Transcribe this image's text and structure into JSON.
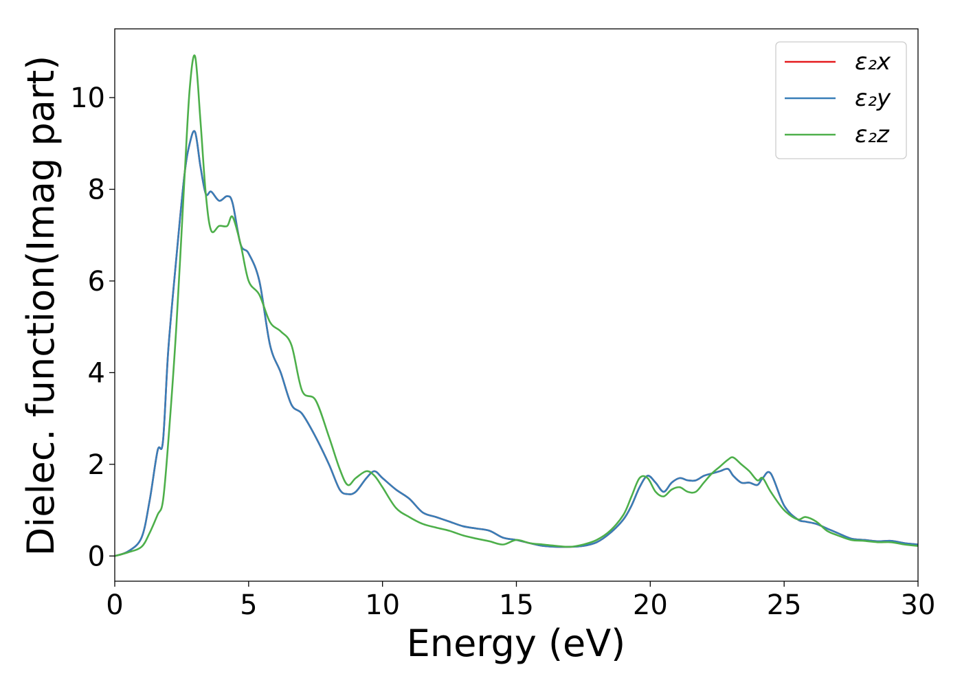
{
  "chart_data": {
    "type": "line",
    "title": "",
    "xlabel": "Energy (eV)",
    "ylabel": "Dielec. function(Imag part)",
    "xlim": [
      0,
      30
    ],
    "ylim": [
      -0.55,
      11.5
    ],
    "xticks": [
      0,
      5,
      10,
      15,
      20,
      25,
      30
    ],
    "yticks": [
      0,
      2,
      4,
      6,
      8,
      10
    ],
    "grid": false,
    "legend_position": "top-right",
    "x": [
      0,
      0.5,
      1.0,
      1.3,
      1.6,
      1.8,
      2.0,
      2.3,
      2.6,
      2.8,
      3.0,
      3.2,
      3.4,
      3.6,
      3.9,
      4.2,
      4.4,
      4.7,
      5.0,
      5.4,
      5.8,
      6.2,
      6.6,
      7.0,
      7.5,
      8.0,
      8.4,
      8.7,
      9.0,
      9.4,
      9.7,
      10.0,
      10.5,
      11.0,
      11.5,
      12.0,
      12.5,
      13.0,
      13.5,
      14.0,
      14.5,
      15.0,
      15.5,
      16.0,
      16.5,
      17.0,
      17.5,
      18.0,
      18.5,
      19.0,
      19.3,
      19.6,
      19.9,
      20.2,
      20.5,
      20.8,
      21.1,
      21.4,
      21.7,
      22.0,
      22.3,
      22.6,
      22.9,
      23.1,
      23.4,
      23.7,
      24.0,
      24.2,
      24.5,
      25.0,
      25.5,
      25.8,
      26.2,
      26.6,
      27.0,
      27.5,
      28.0,
      28.5,
      29.0,
      29.5,
      30.0
    ],
    "series": [
      {
        "name": "ε₂x",
        "color": "#e41a1c",
        "values": [
          0.0,
          0.1,
          0.4,
          1.2,
          2.3,
          2.5,
          4.5,
          6.5,
          8.3,
          9.0,
          9.25,
          8.5,
          7.9,
          7.95,
          7.75,
          7.85,
          7.7,
          6.8,
          6.6,
          6.0,
          4.6,
          4.0,
          3.3,
          3.1,
          2.6,
          2.0,
          1.45,
          1.35,
          1.4,
          1.7,
          1.85,
          1.7,
          1.45,
          1.25,
          0.95,
          0.85,
          0.75,
          0.65,
          0.6,
          0.55,
          0.4,
          0.35,
          0.28,
          0.22,
          0.2,
          0.2,
          0.22,
          0.3,
          0.5,
          0.8,
          1.1,
          1.5,
          1.75,
          1.6,
          1.4,
          1.6,
          1.7,
          1.65,
          1.65,
          1.75,
          1.8,
          1.85,
          1.9,
          1.75,
          1.6,
          1.6,
          1.55,
          1.7,
          1.8,
          1.1,
          0.8,
          0.75,
          0.7,
          0.6,
          0.5,
          0.38,
          0.35,
          0.32,
          0.33,
          0.28,
          0.25
        ]
      },
      {
        "name": "ε₂y",
        "color": "#377eb8",
        "values": [
          0.0,
          0.1,
          0.4,
          1.2,
          2.3,
          2.5,
          4.5,
          6.5,
          8.3,
          9.0,
          9.25,
          8.5,
          7.9,
          7.95,
          7.75,
          7.85,
          7.7,
          6.8,
          6.6,
          6.0,
          4.6,
          4.0,
          3.3,
          3.1,
          2.6,
          2.0,
          1.45,
          1.35,
          1.4,
          1.7,
          1.85,
          1.7,
          1.45,
          1.25,
          0.95,
          0.85,
          0.75,
          0.65,
          0.6,
          0.55,
          0.4,
          0.35,
          0.28,
          0.22,
          0.2,
          0.2,
          0.22,
          0.3,
          0.5,
          0.8,
          1.1,
          1.5,
          1.75,
          1.6,
          1.4,
          1.6,
          1.7,
          1.65,
          1.65,
          1.75,
          1.8,
          1.85,
          1.9,
          1.75,
          1.6,
          1.6,
          1.55,
          1.7,
          1.8,
          1.1,
          0.8,
          0.75,
          0.7,
          0.6,
          0.5,
          0.38,
          0.35,
          0.32,
          0.33,
          0.28,
          0.25
        ]
      },
      {
        "name": "ε₂z",
        "color": "#4daf4a",
        "values": [
          0.0,
          0.08,
          0.2,
          0.5,
          0.9,
          1.2,
          2.5,
          5.0,
          8.2,
          10.2,
          10.9,
          9.5,
          7.9,
          7.1,
          7.2,
          7.2,
          7.4,
          6.8,
          6.0,
          5.7,
          5.1,
          4.9,
          4.6,
          3.6,
          3.4,
          2.6,
          1.9,
          1.55,
          1.7,
          1.85,
          1.75,
          1.5,
          1.05,
          0.85,
          0.7,
          0.62,
          0.55,
          0.45,
          0.38,
          0.32,
          0.25,
          0.35,
          0.28,
          0.25,
          0.22,
          0.2,
          0.25,
          0.35,
          0.55,
          0.9,
          1.3,
          1.7,
          1.7,
          1.4,
          1.3,
          1.45,
          1.5,
          1.4,
          1.4,
          1.6,
          1.8,
          1.95,
          2.1,
          2.15,
          2.0,
          1.85,
          1.65,
          1.7,
          1.4,
          1.0,
          0.8,
          0.85,
          0.75,
          0.55,
          0.45,
          0.35,
          0.33,
          0.3,
          0.3,
          0.25,
          0.22
        ]
      }
    ]
  }
}
